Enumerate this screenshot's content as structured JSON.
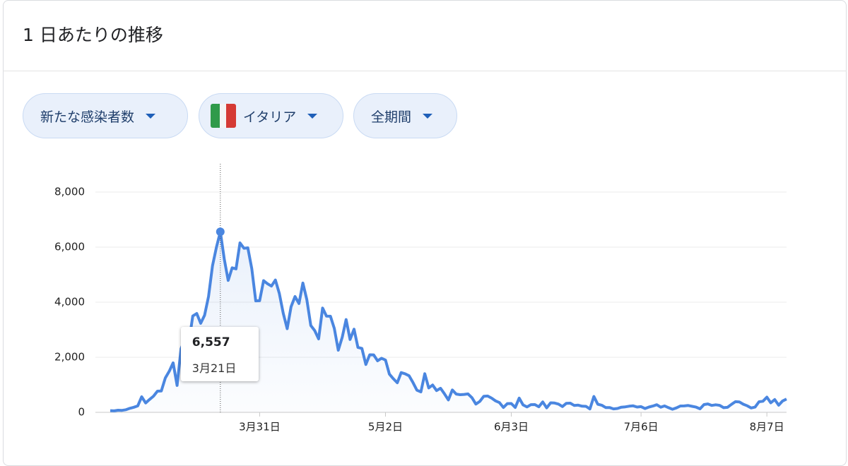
{
  "header": {
    "title": "1 日あたりの推移"
  },
  "filters": [
    {
      "label": "新たな感染者数"
    },
    {
      "label": "イタリア"
    },
    {
      "label": "全期間"
    }
  ],
  "chart_data": {
    "type": "line",
    "categories": [
      null,
      null,
      null,
      null,
      null,
      null,
      null,
      null,
      null,
      null,
      null,
      null,
      null,
      null,
      null,
      null,
      null,
      null,
      null,
      null,
      null,
      null,
      null,
      null,
      null,
      null,
      null,
      null,
      null,
      null,
      null,
      null,
      null,
      null,
      null,
      null,
      null,
      null,
      "3月31日",
      null,
      null,
      null,
      null,
      null,
      null,
      null,
      null,
      null,
      null,
      null,
      null,
      null,
      null,
      null,
      null,
      null,
      null,
      null,
      null,
      null,
      null,
      null,
      null,
      null,
      null,
      null,
      null,
      null,
      null,
      null,
      "5月2日",
      null,
      null,
      null,
      null,
      null,
      null,
      null,
      null,
      null,
      null,
      null,
      null,
      null,
      null,
      null,
      null,
      null,
      null,
      null,
      null,
      null,
      null,
      null,
      null,
      null,
      null,
      null,
      null,
      null,
      null,
      null,
      "6月3日",
      null,
      null,
      null,
      null,
      null,
      null,
      null,
      null,
      null,
      null,
      null,
      null,
      null,
      null,
      null,
      null,
      null,
      null,
      null,
      null,
      null,
      null,
      null,
      null,
      null,
      null,
      null,
      null,
      null,
      null,
      null,
      null,
      "7月6日",
      null,
      null,
      null,
      null,
      null,
      null,
      null,
      null,
      null,
      null,
      null,
      null,
      null,
      null,
      null,
      null,
      null,
      null,
      null,
      null,
      null,
      null,
      null,
      null,
      null,
      null,
      null,
      null,
      null,
      null,
      null,
      "8月7日",
      null,
      null,
      null,
      null,
      null
    ],
    "values": [
      62,
      53,
      78,
      72,
      94,
      147,
      185,
      234,
      566,
      342,
      466,
      587,
      769,
      778,
      1247,
      1492,
      1797,
      977,
      2313,
      2651,
      2547,
      3497,
      3590,
      3233,
      3526,
      4207,
      5322,
      5986,
      6557,
      5560,
      4789,
      5249,
      5210,
      6153,
      5959,
      5974,
      5217,
      4050,
      4053,
      4782,
      4668,
      4585,
      4805,
      4316,
      3599,
      3039,
      3836,
      4204,
      3951,
      4694,
      4092,
      3153,
      2972,
      2667,
      3786,
      3493,
      3491,
      3047,
      2256,
      2729,
      3370,
      2646,
      3021,
      2357,
      2324,
      1739,
      2091,
      2086,
      1872,
      1965,
      1900,
      1389,
      1221,
      1075,
      1444,
      1401,
      1327,
      1083,
      802,
      744,
      1402,
      888,
      992,
      789,
      875,
      675,
      451,
      813,
      665,
      642,
      652,
      669,
      531,
      300,
      397,
      584,
      593,
      516,
      416,
      355,
      178,
      318,
      321,
      177,
      518,
      270,
      197,
      280,
      283,
      202,
      379,
      163,
      346,
      338,
      301,
      210,
      328,
      333,
      251,
      262,
      224,
      218,
      122,
      577,
      296,
      259,
      175,
      174,
      126,
      142,
      187,
      201,
      223,
      235,
      192,
      208,
      138,
      193,
      229,
      276,
      188,
      234,
      169,
      114,
      162,
      230,
      233,
      249,
      219,
      190,
      129,
      282,
      306,
      252,
      275,
      255,
      170,
      181,
      289,
      386,
      379,
      295,
      239,
      159,
      190,
      384,
      402,
      552,
      347,
      463,
      259,
      412,
      481
    ],
    "value_labels": [
      null,
      null,
      null,
      null,
      null,
      null,
      null,
      null,
      null,
      null,
      null,
      null,
      null,
      null,
      null,
      null,
      null,
      null,
      null,
      null,
      null,
      null,
      null,
      null,
      null,
      null,
      null,
      null,
      "6,557",
      null,
      null,
      null,
      null,
      null,
      null,
      null,
      null,
      null,
      null,
      null,
      null,
      null,
      null,
      null,
      null,
      null,
      null,
      null,
      null,
      null,
      null,
      null,
      null,
      null,
      null,
      null,
      null,
      null,
      null,
      null,
      null,
      null,
      null,
      null,
      null,
      null,
      null,
      null,
      null,
      null,
      null,
      null,
      null,
      null,
      null,
      null,
      null,
      null,
      null,
      null,
      null,
      null,
      null,
      null,
      null,
      null,
      null,
      null,
      null,
      null,
      null,
      null,
      null,
      null,
      null,
      null,
      null,
      null,
      null,
      null,
      null,
      null,
      null,
      null,
      null,
      null,
      null,
      null,
      null,
      null,
      null,
      null,
      null,
      null,
      null,
      null,
      null,
      null,
      null,
      null,
      null,
      null,
      null,
      null,
      null,
      null,
      null,
      null,
      null,
      null,
      null,
      null,
      null,
      null,
      null,
      null,
      null,
      null,
      null,
      null,
      null,
      null,
      null,
      null,
      null,
      null,
      null,
      null,
      null,
      null,
      null,
      null,
      null,
      null,
      null,
      null,
      null,
      null,
      null,
      null,
      null,
      null,
      null,
      null,
      null,
      null,
      null,
      null,
      null,
      null,
      null,
      null,
      null
    ],
    "tooltip_date": "3月21日",
    "color": "#4a86e0",
    "ylim": [
      0,
      8000
    ],
    "yticks": [
      0,
      {
        "value": 2000,
        "label": "2,000"
      },
      {
        "value": 4000,
        "label": "4,000"
      },
      {
        "value": 6000,
        "label": "6,000"
      },
      {
        "value": 8000,
        "label": "8,000"
      }
    ],
    "grid": true
  }
}
